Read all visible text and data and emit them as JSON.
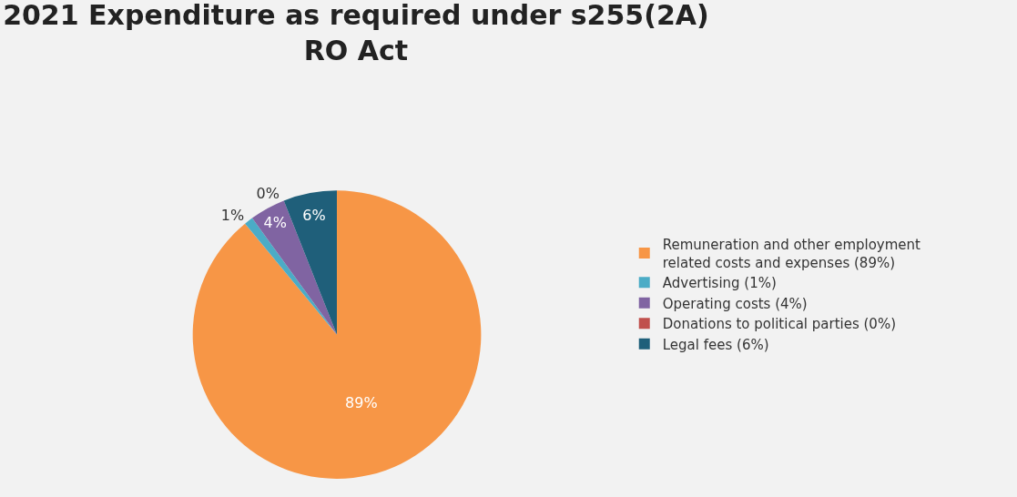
{
  "chart_data": {
    "type": "pie",
    "title": "2021 Expenditure as required under s255(2A)\nRO Act",
    "categories": [
      "Remuneration and other employment related costs and expenses (89%)",
      "Advertising (1%)",
      "Operating costs (4%)",
      "Donations to political parties (0%)",
      "Legal fees (6%)"
    ],
    "values": [
      89,
      1,
      4,
      0,
      6
    ],
    "colors": [
      "#f79646",
      "#4bacc6",
      "#8064a2",
      "#c0504d",
      "#1f5f7a"
    ],
    "value_labels": [
      "89%",
      "1%",
      "4%",
      "0%",
      "6%"
    ],
    "legend": "right"
  }
}
